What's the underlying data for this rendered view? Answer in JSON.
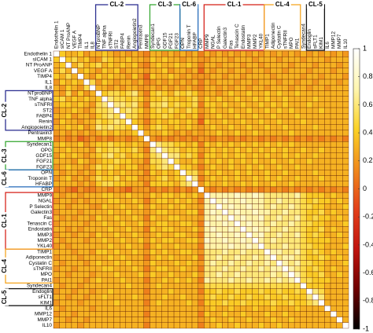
{
  "chart_data": {
    "type": "heatmap",
    "categories": [
      "Endothelin 1",
      "sICAM 1",
      "NT ProANP",
      "VEGF A",
      "TIMP4",
      "IL1",
      "IL8",
      "NTproBNP",
      "TNF alpha",
      "sTNFRI",
      "ST2",
      "FABP4",
      "Renin",
      "Angiopoietin2",
      "Pentraxin3",
      "MMP8",
      "Syndecan1",
      "OPG",
      "GDF15",
      "FGF21",
      "FGF23",
      "OPN",
      "Troponin T",
      "HFABP",
      "CRP",
      "MMP9",
      "NGAL",
      "P Selectin",
      "Galectin3",
      "Fas",
      "Tenascin C",
      "Endostatin",
      "MMP3",
      "MMP2",
      "YKL40",
      "TIMP1",
      "Adiponectin",
      "Cystatin C",
      "sTNFRII",
      "MPO",
      "PAI1",
      "Syndecan4",
      "Endoglin",
      "sFLT1",
      "KIM1",
      "IL6",
      "MMP12",
      "MMP7",
      "IL10"
    ],
    "values": [
      [
        1
      ],
      [
        0.4,
        1
      ],
      [
        0.3,
        0.4,
        1
      ],
      [
        0.3,
        0.5,
        0.3,
        1
      ],
      [
        0.4,
        0.3,
        0.5,
        0.3,
        1
      ],
      [
        0.2,
        0.4,
        0.3,
        0.4,
        0.3,
        1
      ],
      [
        0.3,
        0.2,
        0.4,
        0.3,
        0.2,
        0.5,
        1
      ],
      [
        0.3,
        0.2,
        0.5,
        0.2,
        0.4,
        0.2,
        0.3,
        1
      ],
      [
        0.4,
        0.5,
        0.3,
        0.4,
        0.3,
        0.4,
        0.3,
        0.4,
        1
      ],
      [
        0.3,
        0.4,
        0.4,
        0.3,
        0.4,
        0.3,
        0.2,
        0.5,
        0.6,
        1
      ],
      [
        0.2,
        0.3,
        0.3,
        0.4,
        0.3,
        0.2,
        0.3,
        0.5,
        0.5,
        0.6,
        1
      ],
      [
        0.3,
        0.3,
        0.4,
        0.2,
        0.3,
        0.3,
        0.2,
        0.4,
        0.5,
        0.6,
        0.5,
        1
      ],
      [
        0.2,
        0.4,
        0.3,
        0.3,
        0.2,
        0.3,
        0.3,
        0.5,
        0.4,
        0.5,
        0.6,
        0.5,
        1
      ],
      [
        0.3,
        0.3,
        0.4,
        0.3,
        0.4,
        0.2,
        0.3,
        0.6,
        0.5,
        0.6,
        0.5,
        0.5,
        0.4,
        1
      ],
      [
        0.2,
        0.3,
        0.2,
        0.3,
        0.2,
        0.3,
        0.2,
        0.3,
        0.4,
        0.3,
        0.4,
        0.3,
        0.3,
        0.4,
        1
      ],
      [
        0.1,
        0.2,
        0.1,
        0.2,
        0,
        0.1,
        0.2,
        0.1,
        0.2,
        0.1,
        0.2,
        0.2,
        0.1,
        0.2,
        0.3,
        1
      ],
      [
        0.3,
        0.4,
        0.3,
        0.3,
        0.4,
        0.2,
        0.3,
        0.4,
        0.4,
        0.5,
        0.4,
        0.4,
        0.3,
        0.4,
        0.3,
        0.2,
        1
      ],
      [
        0.3,
        0.3,
        0.4,
        0.3,
        0.3,
        0.3,
        0.2,
        0.5,
        0.4,
        0.5,
        0.5,
        0.4,
        0.4,
        0.5,
        0.3,
        0.1,
        0.6,
        1
      ],
      [
        0.2,
        0.4,
        0.3,
        0.4,
        0.3,
        0.2,
        0.3,
        0.4,
        0.5,
        0.6,
        0.4,
        0.5,
        0.3,
        0.4,
        0.4,
        0.2,
        0.5,
        0.6,
        1
      ],
      [
        0.3,
        0.3,
        0.3,
        0.2,
        0.4,
        0.3,
        0.2,
        0.3,
        0.4,
        0.4,
        0.5,
        0.4,
        0.4,
        0.3,
        0.3,
        0.1,
        0.5,
        0.5,
        0.6,
        1
      ],
      [
        0.2,
        0.3,
        0.4,
        0.3,
        0.3,
        0.2,
        0.3,
        0.5,
        0.4,
        0.5,
        0.4,
        0.3,
        0.4,
        0.4,
        0.2,
        0.2,
        0.4,
        0.5,
        0.6,
        0.5,
        1
      ],
      [
        0.3,
        0.2,
        0.3,
        0.3,
        0.2,
        0.3,
        0.2,
        0.4,
        0.3,
        0.4,
        0.3,
        0.4,
        0.3,
        0.3,
        0.3,
        0.1,
        0.4,
        0.3,
        0.4,
        0.3,
        0.4,
        1
      ],
      [
        0.2,
        0.3,
        0.4,
        0.2,
        0.3,
        0.2,
        0.3,
        0.5,
        0.4,
        0.4,
        0.5,
        0.3,
        0.4,
        0.4,
        0.2,
        0.2,
        0.3,
        0.4,
        0.5,
        0.3,
        0.4,
        0.5,
        1
      ],
      [
        0.3,
        0.3,
        0.3,
        0.3,
        0.2,
        0.3,
        0.2,
        0.4,
        0.5,
        0.5,
        0.4,
        0.4,
        0.3,
        0.3,
        0.3,
        0.1,
        0.4,
        0.4,
        0.4,
        0.4,
        0.3,
        0.5,
        0.6,
        1
      ],
      [
        0.1,
        0.2,
        0.1,
        0,
        0.2,
        0.1,
        0.1,
        0.2,
        0.2,
        0.1,
        0.2,
        0.1,
        0,
        0.2,
        0.2,
        0.2,
        0.1,
        0.2,
        0.1,
        0.2,
        0.1,
        0.2,
        0.1,
        0.2,
        1
      ],
      [
        0.3,
        0.2,
        0.3,
        0.3,
        0.2,
        0.3,
        0.3,
        0.3,
        0.4,
        0.4,
        0.3,
        0.3,
        0.4,
        0.3,
        0.3,
        0.2,
        0.4,
        0.3,
        0.4,
        0.4,
        0.3,
        0.4,
        0.3,
        0.4,
        0.2,
        1
      ],
      [
        0.2,
        0.3,
        0.3,
        0.2,
        0.3,
        0.2,
        0.3,
        0.3,
        0.3,
        0.4,
        0.4,
        0.3,
        0.3,
        0.4,
        0.3,
        0.1,
        0.3,
        0.4,
        0.4,
        0.3,
        0.4,
        0.3,
        0.4,
        0.3,
        0.1,
        0.7,
        1
      ],
      [
        0.3,
        0.3,
        0.2,
        0.3,
        0.3,
        0.3,
        0.2,
        0.2,
        0.4,
        0.3,
        0.3,
        0.4,
        0.3,
        0.3,
        0.4,
        0.2,
        0.4,
        0.3,
        0.3,
        0.4,
        0.3,
        0.4,
        0.3,
        0.3,
        0.2,
        0.7,
        0.7,
        1
      ],
      [
        0.2,
        0.3,
        0.3,
        0.3,
        0.2,
        0.3,
        0.3,
        0.3,
        0.3,
        0.4,
        0.3,
        0.3,
        0.4,
        0.3,
        0.3,
        0.2,
        0.3,
        0.4,
        0.4,
        0.3,
        0.3,
        0.3,
        0.4,
        0.4,
        0.1,
        0.7,
        0.8,
        0.7,
        1
      ],
      [
        0.3,
        0.2,
        0.3,
        0.2,
        0.3,
        0.3,
        0.2,
        0.4,
        0.3,
        0.3,
        0.4,
        0.3,
        0.3,
        0.4,
        0.3,
        0.1,
        0.4,
        0.3,
        0.3,
        0.4,
        0.4,
        0.3,
        0.3,
        0.3,
        0.2,
        0.7,
        0.7,
        0.8,
        0.7,
        1
      ],
      [
        0.2,
        0.3,
        0.3,
        0.3,
        0.3,
        0.2,
        0.3,
        0.3,
        0.4,
        0.3,
        0.3,
        0.4,
        0.3,
        0.3,
        0.4,
        0.2,
        0.3,
        0.4,
        0.4,
        0.3,
        0.3,
        0.4,
        0.4,
        0.3,
        0.1,
        0.8,
        0.7,
        0.7,
        0.8,
        0.7,
        1
      ],
      [
        0.3,
        0.3,
        0.2,
        0.3,
        0.2,
        0.3,
        0.3,
        0.3,
        0.3,
        0.4,
        0.3,
        0.3,
        0.4,
        0.3,
        0.3,
        0.1,
        0.4,
        0.3,
        0.4,
        0.4,
        0.3,
        0.3,
        0.3,
        0.4,
        0.2,
        0.7,
        0.8,
        0.7,
        0.7,
        0.8,
        0.7,
        1
      ],
      [
        0.2,
        0.3,
        0.3,
        0.2,
        0.3,
        0.3,
        0.2,
        0.4,
        0.3,
        0.3,
        0.4,
        0.3,
        0.3,
        0.4,
        0.3,
        0.2,
        0.3,
        0.4,
        0.3,
        0.3,
        0.4,
        0.4,
        0.3,
        0.3,
        0.1,
        0.7,
        0.7,
        0.8,
        0.7,
        0.7,
        0.8,
        0.7,
        1
      ],
      [
        0.3,
        0.2,
        0.3,
        0.3,
        0.3,
        0.2,
        0.3,
        0.3,
        0.4,
        0.3,
        0.3,
        0.4,
        0.3,
        0.3,
        0.4,
        0.2,
        0.4,
        0.3,
        0.4,
        0.4,
        0.3,
        0.3,
        0.4,
        0.4,
        0.2,
        0.8,
        0.7,
        0.7,
        0.8,
        0.7,
        0.7,
        0.8,
        0.7,
        1
      ],
      [
        0.2,
        0.3,
        0.2,
        0.3,
        0.3,
        0.3,
        0.3,
        0.3,
        0.3,
        0.4,
        0.3,
        0.3,
        0.4,
        0.3,
        0.3,
        0.1,
        0.3,
        0.4,
        0.3,
        0.3,
        0.4,
        0.3,
        0.3,
        0.3,
        0.1,
        0.7,
        0.7,
        0.7,
        0.7,
        0.8,
        0.7,
        0.7,
        0.8,
        0.7,
        1
      ],
      [
        0.3,
        0.3,
        0.3,
        0.2,
        0.3,
        0.3,
        0.2,
        0.4,
        0.4,
        0.3,
        0.4,
        0.3,
        0.3,
        0.4,
        0.3,
        0.2,
        0.4,
        0.3,
        0.4,
        0.3,
        0.3,
        0.4,
        0.4,
        0.3,
        0.2,
        0.6,
        0.6,
        0.6,
        0.7,
        0.6,
        0.6,
        0.7,
        0.6,
        0.6,
        0.6,
        1
      ],
      [
        0.2,
        0.3,
        0.3,
        0.3,
        0.2,
        0.3,
        0.3,
        0.3,
        0.3,
        0.4,
        0.3,
        0.4,
        0.3,
        0.3,
        0.3,
        0.1,
        0.3,
        0.4,
        0.3,
        0.4,
        0.3,
        0.3,
        0.3,
        0.4,
        0.1,
        0.6,
        0.6,
        0.7,
        0.6,
        0.6,
        0.7,
        0.6,
        0.6,
        0.7,
        0.6,
        0.7,
        1
      ],
      [
        0.3,
        0.2,
        0.3,
        0.3,
        0.3,
        0.2,
        0.3,
        0.4,
        0.3,
        0.3,
        0.4,
        0.3,
        0.4,
        0.3,
        0.3,
        0.2,
        0.4,
        0.3,
        0.3,
        0.3,
        0.4,
        0.3,
        0.4,
        0.3,
        0.2,
        0.6,
        0.7,
        0.6,
        0.6,
        0.7,
        0.6,
        0.6,
        0.7,
        0.6,
        0.6,
        0.7,
        0.6,
        1
      ],
      [
        0.2,
        0.3,
        0.3,
        0.2,
        0.3,
        0.3,
        0.3,
        0.3,
        0.4,
        0.4,
        0.3,
        0.3,
        0.3,
        0.4,
        0.3,
        0.1,
        0.3,
        0.4,
        0.4,
        0.3,
        0.3,
        0.4,
        0.3,
        0.3,
        0.1,
        0.6,
        0.6,
        0.6,
        0.7,
        0.6,
        0.6,
        0.7,
        0.6,
        0.6,
        0.7,
        0.6,
        0.7,
        0.7,
        1
      ],
      [
        0.3,
        0.3,
        0.2,
        0.3,
        0.3,
        0.3,
        0.2,
        0.3,
        0.3,
        0.3,
        0.4,
        0.3,
        0.3,
        0.3,
        0.4,
        0.2,
        0.4,
        0.3,
        0.3,
        0.4,
        0.3,
        0.3,
        0.3,
        0.4,
        0.2,
        0.6,
        0.6,
        0.7,
        0.6,
        0.6,
        0.7,
        0.6,
        0.6,
        0.6,
        0.6,
        0.6,
        0.7,
        0.6,
        0.7,
        1
      ],
      [
        0.2,
        0.3,
        0.3,
        0.3,
        0.3,
        0.2,
        0.3,
        0.4,
        0.3,
        0.3,
        0.3,
        0.4,
        0.3,
        0.3,
        0.3,
        0.1,
        0.3,
        0.3,
        0.4,
        0.3,
        0.4,
        0.3,
        0.4,
        0.3,
        0.1,
        0.7,
        0.6,
        0.6,
        0.6,
        0.7,
        0.6,
        0.6,
        0.7,
        0.6,
        0.6,
        0.7,
        0.6,
        0.7,
        0.6,
        0.7,
        1
      ],
      [
        0.3,
        0.2,
        0.3,
        0.3,
        0.2,
        0.3,
        0.3,
        0.3,
        0.3,
        0.3,
        0.3,
        0.3,
        0.4,
        0.3,
        0.3,
        0.2,
        0.3,
        0.4,
        0.3,
        0.3,
        0.3,
        0.3,
        0.3,
        0.3,
        0.2,
        0.5,
        0.5,
        0.5,
        0.5,
        0.5,
        0.5,
        0.5,
        0.5,
        0.5,
        0.5,
        0.5,
        0.5,
        0.5,
        0.5,
        0.5,
        0.5,
        1
      ],
      [
        0.2,
        0.3,
        0.3,
        0.2,
        0.3,
        0.3,
        0.2,
        0.3,
        0.3,
        0.4,
        0.3,
        0.3,
        0.3,
        0.3,
        0.3,
        0.1,
        0.3,
        0.3,
        0.3,
        0.4,
        0.3,
        0.3,
        0.3,
        0.3,
        0.1,
        0.4,
        0.4,
        0.5,
        0.4,
        0.4,
        0.5,
        0.4,
        0.4,
        0.4,
        0.5,
        0.4,
        0.4,
        0.5,
        0.4,
        0.4,
        0.5,
        0.4,
        1
      ],
      [
        0.3,
        0.3,
        0.2,
        0.3,
        0.3,
        0.2,
        0.3,
        0.3,
        0.4,
        0.3,
        0.3,
        0.3,
        0.3,
        0.4,
        0.3,
        0.2,
        0.3,
        0.3,
        0.4,
        0.3,
        0.3,
        0.4,
        0.3,
        0.3,
        0.2,
        0.4,
        0.5,
        0.4,
        0.4,
        0.5,
        0.4,
        0.4,
        0.5,
        0.4,
        0.4,
        0.5,
        0.4,
        0.4,
        0.5,
        0.4,
        0.4,
        0.4,
        0.6,
        1
      ],
      [
        0.2,
        0.3,
        0.3,
        0.3,
        0.2,
        0.3,
        0.3,
        0.3,
        0.3,
        0.3,
        0.4,
        0.3,
        0.3,
        0.3,
        0.3,
        0.1,
        0.3,
        0.4,
        0.3,
        0.3,
        0.3,
        0.3,
        0.4,
        0.3,
        0.1,
        0.4,
        0.4,
        0.4,
        0.5,
        0.4,
        0.4,
        0.5,
        0.4,
        0.4,
        0.4,
        0.4,
        0.5,
        0.4,
        0.4,
        0.5,
        0.4,
        0.4,
        0.5,
        0.6,
        1
      ],
      [
        0.3,
        0.2,
        0.3,
        0.3,
        0.3,
        0.3,
        0.2,
        0.3,
        0.3,
        0.3,
        0.3,
        0.3,
        0.3,
        0.3,
        0.3,
        0.2,
        0.3,
        0.3,
        0.3,
        0.3,
        0.3,
        0.3,
        0.3,
        0.3,
        0.2,
        0.3,
        0.4,
        0.3,
        0.3,
        0.4,
        0.3,
        0.3,
        0.3,
        0.4,
        0.3,
        0.3,
        0.4,
        0.3,
        0.3,
        0.3,
        0.4,
        0.3,
        0.3,
        0.3,
        0.3,
        1
      ],
      [
        0.2,
        0.3,
        0.3,
        0.2,
        0.3,
        0.3,
        0.3,
        0.3,
        0.3,
        0.3,
        0.3,
        0.3,
        0.3,
        0.3,
        0.3,
        0.1,
        0.3,
        0.3,
        0.3,
        0.3,
        0.3,
        0.3,
        0.3,
        0.3,
        0.1,
        0.4,
        0.3,
        0.3,
        0.4,
        0.3,
        0.3,
        0.4,
        0.3,
        0.3,
        0.3,
        0.4,
        0.3,
        0.3,
        0.4,
        0.3,
        0.3,
        0.3,
        0.3,
        0.3,
        0.3,
        0.3,
        1
      ],
      [
        0.3,
        0.3,
        0.2,
        0.3,
        0.3,
        0.2,
        0.3,
        0.3,
        0.3,
        0.3,
        0.3,
        0.3,
        0.3,
        0.3,
        0.3,
        0.2,
        0.3,
        0.3,
        0.3,
        0.3,
        0.3,
        0.3,
        0.3,
        0.3,
        0.2,
        0.3,
        0.4,
        0.3,
        0.3,
        0.4,
        0.3,
        0.3,
        0.4,
        0.3,
        0.3,
        0.3,
        0.4,
        0.3,
        0.3,
        0.4,
        0.3,
        0.3,
        0.3,
        0.3,
        0.3,
        0.3,
        0.3,
        1
      ],
      [
        0.2,
        0.3,
        0.3,
        0.3,
        0.2,
        0.3,
        0.3,
        0.3,
        0.3,
        0.3,
        0.3,
        0.3,
        0.3,
        0.3,
        0.3,
        0.1,
        0.3,
        0.3,
        0.3,
        0.3,
        0.3,
        0.3,
        0.3,
        0.3,
        0.1,
        0.3,
        0.3,
        0.4,
        0.3,
        0.3,
        0.4,
        0.3,
        0.3,
        0.3,
        0.4,
        0.3,
        0.3,
        0.4,
        0.3,
        0.3,
        0.3,
        0.3,
        0.3,
        0.3,
        0.3,
        0.3,
        0.3,
        0.3,
        1
      ]
    ],
    "zlim": [
      -1,
      1
    ],
    "zticks": [
      1,
      0.8,
      0.6,
      0.4,
      0.2,
      0,
      -0.2,
      -0.4,
      -0.6,
      -0.8,
      -1
    ],
    "colormap": [
      "#000000",
      "#6e0000",
      "#c0140f",
      "#e3401a",
      "#f08a1c",
      "#fbd226",
      "#fff6b0",
      "#ffffff"
    ],
    "groups": [
      {
        "label": "CL-2",
        "start": 7,
        "end": 13,
        "color": "#2e3192"
      },
      {
        "label": "CL-3",
        "start": 16,
        "end": 20,
        "color": "#3aa935"
      },
      {
        "label": "CL-6",
        "start": 21,
        "end": 23,
        "color": "#2a6ebb"
      },
      {
        "label": "CL-1",
        "start": 25,
        "end": 34,
        "color": "#d7261e"
      },
      {
        "label": "CL-4",
        "start": 35,
        "end": 40,
        "color": "#f5a623"
      },
      {
        "label": "CL-5",
        "start": 42,
        "end": 44,
        "color": "#111111"
      }
    ]
  }
}
